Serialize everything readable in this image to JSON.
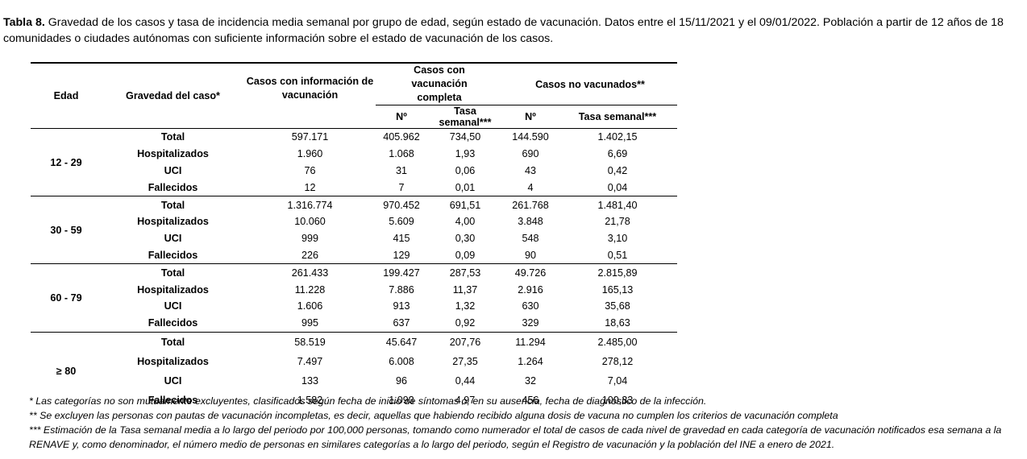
{
  "caption": {
    "label": "Tabla 8.",
    "text": " Gravedad de los casos y tasa de incidencia media semanal por grupo de edad, según estado de vacunación. Datos entre el 15/11/2021 y el 09/01/2022. Población a partir de 12 años de 18 comunidades o ciudades autónomas con suficiente información sobre el estado de vacunación de los casos."
  },
  "headers": {
    "edad": "Edad",
    "gravedad": "Gravedad del caso*",
    "info": "Casos con información de vacunación",
    "completa": "Casos con vacunación completa",
    "no_vac": "Casos no vacunados**",
    "num": "Nº",
    "tasa": "Tasa semanal***"
  },
  "groups": [
    {
      "age": "12 - 29",
      "rows": [
        {
          "sev": "Total",
          "info": "597.171",
          "vc_n": "405.962",
          "vc_t": "734,50",
          "nv_n": "144.590",
          "nv_t": "1.402,15"
        },
        {
          "sev": "Hospitalizados",
          "info": "1.960",
          "vc_n": "1.068",
          "vc_t": "1,93",
          "nv_n": "690",
          "nv_t": "6,69"
        },
        {
          "sev": "UCI",
          "info": "76",
          "vc_n": "31",
          "vc_t": "0,06",
          "nv_n": "43",
          "nv_t": "0,42"
        },
        {
          "sev": "Fallecidos",
          "info": "12",
          "vc_n": "7",
          "vc_t": "0,01",
          "nv_n": "4",
          "nv_t": "0,04"
        }
      ]
    },
    {
      "age": "30 - 59",
      "rows": [
        {
          "sev": "Total",
          "info": "1.316.774",
          "vc_n": "970.452",
          "vc_t": "691,51",
          "nv_n": "261.768",
          "nv_t": "1.481,40"
        },
        {
          "sev": "Hospitalizados",
          "info": "10.060",
          "vc_n": "5.609",
          "vc_t": "4,00",
          "nv_n": "3.848",
          "nv_t": "21,78"
        },
        {
          "sev": "UCI",
          "info": "999",
          "vc_n": "415",
          "vc_t": "0,30",
          "nv_n": "548",
          "nv_t": "3,10"
        },
        {
          "sev": "Fallecidos",
          "info": "226",
          "vc_n": "129",
          "vc_t": "0,09",
          "nv_n": "90",
          "nv_t": "0,51"
        }
      ]
    },
    {
      "age": "60 - 79",
      "rows": [
        {
          "sev": "Total",
          "info": "261.433",
          "vc_n": "199.427",
          "vc_t": "287,53",
          "nv_n": "49.726",
          "nv_t": "2.815,89"
        },
        {
          "sev": "Hospitalizados",
          "info": "11.228",
          "vc_n": "7.886",
          "vc_t": "11,37",
          "nv_n": "2.916",
          "nv_t": "165,13"
        },
        {
          "sev": "UCI",
          "info": "1.606",
          "vc_n": "913",
          "vc_t": "1,32",
          "nv_n": "630",
          "nv_t": "35,68"
        },
        {
          "sev": "Fallecidos",
          "info": "995",
          "vc_n": "637",
          "vc_t": "0,92",
          "nv_n": "329",
          "nv_t": "18,63"
        }
      ]
    },
    {
      "age": "≥ 80",
      "rows": [
        {
          "sev": "Total",
          "info": "58.519",
          "vc_n": "45.647",
          "vc_t": "207,76",
          "nv_n": "11.294",
          "nv_t": "2.485,00"
        },
        {
          "sev": "Hospitalizados",
          "info": "7.497",
          "vc_n": "6.008",
          "vc_t": "27,35",
          "nv_n": "1.264",
          "nv_t": "278,12"
        },
        {
          "sev": "UCI",
          "info": "133",
          "vc_n": "96",
          "vc_t": "0,44",
          "nv_n": "32",
          "nv_t": "7,04"
        },
        {
          "sev": "Fallecidos",
          "info": "1.582",
          "vc_n": "1.093",
          "vc_t": "4,97",
          "nv_n": "456",
          "nv_t": "100,33"
        }
      ]
    }
  ],
  "notes": [
    "* Las categorías no son mutuamente excluyentes, clasificados según fecha de inicio de síntomas o, en su ausencia, fecha de diagnóstico de la infección.",
    "** Se excluyen las personas con pautas de vacunación incompletas, es decir, aquellas que habiendo recibido alguna dosis de vacuna no cumplen los criterios de vacunación completa",
    "*** Estimación de la Tasa semanal media a lo largo del periodo por 100,000 personas, tomando como numerador el total de casos de cada nivel de gravedad en cada categoría de vacunación notificados esa semana a la RENAVE y, como denominador, el número medio de personas en similares categorías a lo largo del periodo, según el Registro de vacunación y la población del INE a enero de 2021."
  ]
}
